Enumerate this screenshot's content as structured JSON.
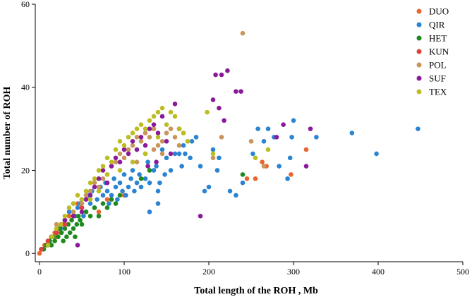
{
  "chart_data": {
    "type": "scatter",
    "title": "",
    "xlabel": "Total length of the ROH , Mb",
    "ylabel": "Total number of ROH",
    "xlim": [
      -5,
      500
    ],
    "ylim": [
      -2,
      60
    ],
    "xticks": [
      0,
      100,
      200,
      300,
      400,
      500
    ],
    "yticks": [
      0,
      20,
      40,
      60
    ],
    "grid": false,
    "legend": "top-right",
    "series": [
      {
        "name": "DUO",
        "color": "#e8662e",
        "points": [
          [
            0,
            0
          ],
          [
            3,
            1
          ],
          [
            6,
            2
          ],
          [
            8,
            2
          ],
          [
            10,
            3
          ],
          [
            12,
            3
          ],
          [
            14,
            4
          ],
          [
            16,
            4
          ],
          [
            18,
            5
          ],
          [
            20,
            4
          ],
          [
            22,
            6
          ],
          [
            25,
            5
          ],
          [
            28,
            7
          ],
          [
            30,
            8
          ],
          [
            35,
            9
          ],
          [
            40,
            10
          ],
          [
            45,
            12
          ],
          [
            50,
            11
          ],
          [
            60,
            13
          ],
          [
            70,
            10
          ],
          [
            80,
            13
          ],
          [
            100,
            14
          ],
          [
            255,
            18
          ],
          [
            263,
            22
          ],
          [
            268,
            21
          ],
          [
            297,
            19
          ],
          [
            315,
            25
          ],
          [
            245,
            18
          ]
        ]
      },
      {
        "name": "QIR",
        "color": "#2a84d2",
        "points": [
          [
            15,
            4
          ],
          [
            20,
            5
          ],
          [
            25,
            6
          ],
          [
            30,
            8
          ],
          [
            35,
            10
          ],
          [
            40,
            12
          ],
          [
            42,
            9
          ],
          [
            45,
            11
          ],
          [
            48,
            12
          ],
          [
            50,
            13
          ],
          [
            52,
            9
          ],
          [
            55,
            10
          ],
          [
            58,
            14
          ],
          [
            60,
            12
          ],
          [
            62,
            15
          ],
          [
            65,
            11
          ],
          [
            68,
            13
          ],
          [
            70,
            15
          ],
          [
            72,
            16
          ],
          [
            75,
            14
          ],
          [
            78,
            17
          ],
          [
            80,
            15
          ],
          [
            82,
            12
          ],
          [
            85,
            14
          ],
          [
            88,
            18
          ],
          [
            90,
            16
          ],
          [
            92,
            13
          ],
          [
            95,
            17
          ],
          [
            98,
            15
          ],
          [
            100,
            19
          ],
          [
            102,
            14
          ],
          [
            105,
            16
          ],
          [
            108,
            18
          ],
          [
            110,
            20
          ],
          [
            112,
            15
          ],
          [
            115,
            17
          ],
          [
            118,
            19
          ],
          [
            120,
            16
          ],
          [
            125,
            18
          ],
          [
            128,
            22
          ],
          [
            130,
            17
          ],
          [
            135,
            20
          ],
          [
            138,
            21
          ],
          [
            140,
            15
          ],
          [
            142,
            17
          ],
          [
            145,
            25
          ],
          [
            148,
            19
          ],
          [
            150,
            23
          ],
          [
            155,
            20
          ],
          [
            160,
            24
          ],
          [
            165,
            24
          ],
          [
            168,
            21
          ],
          [
            170,
            26
          ],
          [
            172,
            24
          ],
          [
            178,
            23
          ],
          [
            180,
            27
          ],
          [
            185,
            28
          ],
          [
            190,
            21
          ],
          [
            195,
            15
          ],
          [
            200,
            16
          ],
          [
            205,
            25
          ],
          [
            210,
            20
          ],
          [
            212,
            23
          ],
          [
            225,
            15
          ],
          [
            232,
            14
          ],
          [
            240,
            17
          ],
          [
            252,
            24
          ],
          [
            258,
            30
          ],
          [
            265,
            27
          ],
          [
            270,
            30
          ],
          [
            277,
            28
          ],
          [
            283,
            21
          ],
          [
            293,
            18
          ],
          [
            296,
            23
          ],
          [
            298,
            28
          ],
          [
            300,
            32
          ],
          [
            327,
            28
          ],
          [
            369,
            29
          ],
          [
            398,
            24
          ],
          [
            447,
            30
          ],
          [
            140,
            12
          ],
          [
            130,
            10
          ]
        ]
      },
      {
        "name": "HET",
        "color": "#1e8a1e",
        "points": [
          [
            5,
            1
          ],
          [
            8,
            2
          ],
          [
            10,
            2
          ],
          [
            12,
            3
          ],
          [
            14,
            2
          ],
          [
            16,
            4
          ],
          [
            18,
            3
          ],
          [
            20,
            5
          ],
          [
            22,
            4
          ],
          [
            24,
            6
          ],
          [
            26,
            5
          ],
          [
            28,
            3
          ],
          [
            30,
            6
          ],
          [
            32,
            4
          ],
          [
            34,
            7
          ],
          [
            36,
            5
          ],
          [
            38,
            8
          ],
          [
            40,
            6
          ],
          [
            42,
            4
          ],
          [
            44,
            7
          ],
          [
            46,
            9
          ],
          [
            48,
            8
          ],
          [
            50,
            7
          ],
          [
            55,
            10
          ],
          [
            60,
            9
          ],
          [
            65,
            11
          ],
          [
            70,
            9
          ],
          [
            75,
            12
          ],
          [
            80,
            11
          ],
          [
            85,
            13
          ],
          [
            90,
            12
          ],
          [
            95,
            14
          ],
          [
            120,
            18
          ],
          [
            130,
            20
          ],
          [
            240,
            19
          ]
        ]
      },
      {
        "name": "KUN",
        "color": "#e04040",
        "points": [
          [
            2,
            1
          ],
          [
            10,
            3
          ],
          [
            20,
            5
          ],
          [
            30,
            7
          ],
          [
            40,
            9
          ],
          [
            50,
            11
          ],
          [
            60,
            13
          ]
        ]
      },
      {
        "name": "POL",
        "color": "#c8955a",
        "points": [
          [
            20,
            7
          ],
          [
            30,
            8
          ],
          [
            40,
            10
          ],
          [
            50,
            12
          ],
          [
            55,
            14
          ],
          [
            60,
            15
          ],
          [
            65,
            17
          ],
          [
            70,
            16
          ],
          [
            75,
            18
          ],
          [
            80,
            19
          ],
          [
            85,
            21
          ],
          [
            90,
            22
          ],
          [
            95,
            24
          ],
          [
            100,
            23
          ],
          [
            105,
            25
          ],
          [
            110,
            26
          ],
          [
            115,
            28
          ],
          [
            120,
            27
          ],
          [
            125,
            29
          ],
          [
            130,
            28
          ],
          [
            135,
            30
          ],
          [
            140,
            26
          ],
          [
            145,
            27
          ],
          [
            150,
            29
          ],
          [
            155,
            30
          ],
          [
            160,
            28
          ],
          [
            165,
            26
          ],
          [
            170,
            29
          ],
          [
            175,
            27
          ],
          [
            205,
            23
          ],
          [
            215,
            28
          ],
          [
            240,
            53
          ],
          [
            250,
            27
          ],
          [
            265,
            21
          ],
          [
            115,
            22
          ],
          [
            125,
            24
          ],
          [
            135,
            25
          ],
          [
            145,
            24
          ],
          [
            160,
            36
          ]
        ]
      },
      {
        "name": "SUF",
        "color": "#8a1a9a",
        "points": [
          [
            30,
            8
          ],
          [
            40,
            9
          ],
          [
            45,
            2
          ],
          [
            50,
            10
          ],
          [
            55,
            13
          ],
          [
            60,
            14
          ],
          [
            65,
            16
          ],
          [
            70,
            18
          ],
          [
            75,
            20
          ],
          [
            80,
            17
          ],
          [
            85,
            21
          ],
          [
            90,
            23
          ],
          [
            95,
            22
          ],
          [
            100,
            25
          ],
          [
            105,
            24
          ],
          [
            110,
            27
          ],
          [
            115,
            25
          ],
          [
            120,
            28
          ],
          [
            125,
            26
          ],
          [
            130,
            30
          ],
          [
            135,
            31
          ],
          [
            140,
            29
          ],
          [
            145,
            33
          ],
          [
            150,
            27
          ],
          [
            155,
            24
          ],
          [
            160,
            36
          ],
          [
            165,
            30
          ],
          [
            190,
            9
          ],
          [
            205,
            37
          ],
          [
            208,
            43
          ],
          [
            212,
            35
          ],
          [
            215,
            43
          ],
          [
            218,
            32
          ],
          [
            222,
            44
          ],
          [
            232,
            39
          ],
          [
            238,
            39
          ],
          [
            280,
            28
          ],
          [
            288,
            31
          ],
          [
            315,
            21
          ],
          [
            320,
            30
          ],
          [
            128,
            21
          ],
          [
            138,
            22
          ]
        ]
      },
      {
        "name": "TEX",
        "color": "#bcbd22",
        "points": [
          [
            10,
            2
          ],
          [
            15,
            4
          ],
          [
            20,
            6
          ],
          [
            25,
            7
          ],
          [
            30,
            9
          ],
          [
            35,
            11
          ],
          [
            40,
            12
          ],
          [
            45,
            14
          ],
          [
            50,
            13
          ],
          [
            55,
            15
          ],
          [
            60,
            17
          ],
          [
            65,
            18
          ],
          [
            70,
            20
          ],
          [
            75,
            21
          ],
          [
            80,
            23
          ],
          [
            85,
            22
          ],
          [
            90,
            25
          ],
          [
            95,
            27
          ],
          [
            100,
            26
          ],
          [
            105,
            28
          ],
          [
            110,
            29
          ],
          [
            115,
            30
          ],
          [
            120,
            31
          ],
          [
            125,
            30
          ],
          [
            130,
            32
          ],
          [
            135,
            33
          ],
          [
            140,
            34
          ],
          [
            145,
            35
          ],
          [
            150,
            31
          ],
          [
            155,
            34
          ],
          [
            160,
            33
          ],
          [
            165,
            30
          ],
          [
            170,
            29
          ],
          [
            175,
            27
          ],
          [
            198,
            34
          ],
          [
            205,
            24
          ],
          [
            255,
            23
          ],
          [
            270,
            25
          ],
          [
            60,
            13
          ],
          [
            70,
            15
          ],
          [
            80,
            19
          ],
          [
            95,
            20
          ],
          [
            110,
            22
          ],
          [
            125,
            24
          ],
          [
            140,
            28
          ]
        ]
      }
    ]
  }
}
